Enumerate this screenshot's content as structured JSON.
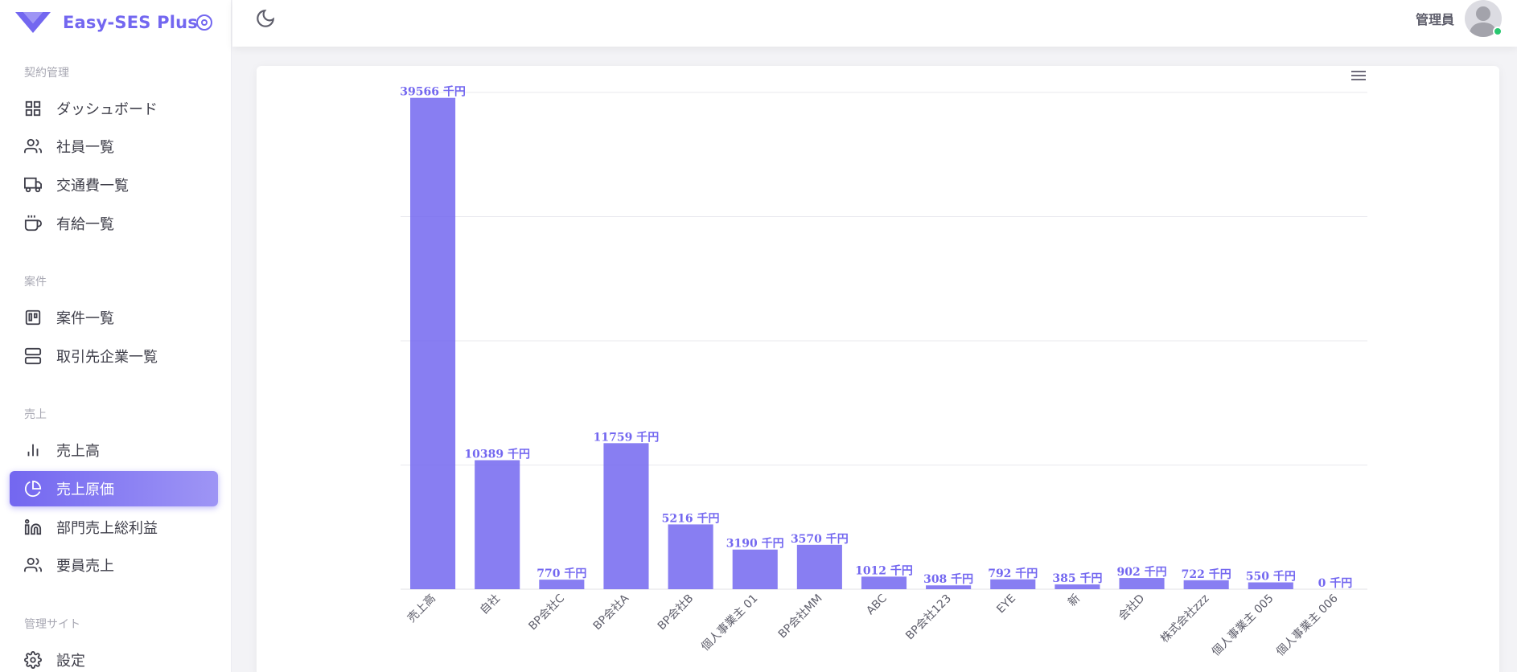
{
  "brand": {
    "name": "Easy-SES Plus",
    "color": "#7367f0"
  },
  "sidebar": {
    "sections": [
      {
        "title": "契約管理",
        "items": [
          {
            "label": "ダッシュボード",
            "icon": "grid-icon"
          },
          {
            "label": "社員一覧",
            "icon": "users-icon"
          },
          {
            "label": "交通費一覧",
            "icon": "truck-icon"
          },
          {
            "label": "有給一覧",
            "icon": "coffee-icon"
          }
        ]
      },
      {
        "title": "案件",
        "items": [
          {
            "label": "案件一覧",
            "icon": "trello-icon"
          },
          {
            "label": "取引先企業一覧",
            "icon": "server-icon"
          }
        ]
      },
      {
        "title": "売上",
        "items": [
          {
            "label": "売上高",
            "icon": "bar-chart-icon"
          },
          {
            "label": "売上原価",
            "icon": "pie-chart-icon",
            "active": true
          },
          {
            "label": "部門売上総利益",
            "icon": "linkedin-icon"
          },
          {
            "label": "要員売上",
            "icon": "users-icon"
          }
        ]
      },
      {
        "title": "管理サイト",
        "items": [
          {
            "label": "設定",
            "icon": "settings-icon"
          }
        ]
      }
    ]
  },
  "header": {
    "user_name": "管理員",
    "theme_icon": "moon-icon",
    "avatar_icon": "avatar-icon",
    "status_color": "#28c76f"
  },
  "chart_data": {
    "type": "bar",
    "categories": [
      "売上高",
      "自社",
      "BP会社C",
      "BP会社A",
      "BP会社B",
      "個人事業主 01",
      "BP会社MM",
      "ABC",
      "BP会社123",
      "EYE",
      "新",
      "会社D",
      "株式会社zzz",
      "個人事業主 005",
      "個人事業主 006"
    ],
    "values": [
      39566,
      10389,
      770,
      11759,
      5216,
      3190,
      3570,
      1012,
      308,
      792,
      385,
      902,
      722,
      550,
      0
    ],
    "data_label_suffix": " 千円",
    "ylim": [
      0,
      40000
    ],
    "grid": true,
    "bar_color": "#7367f0"
  }
}
